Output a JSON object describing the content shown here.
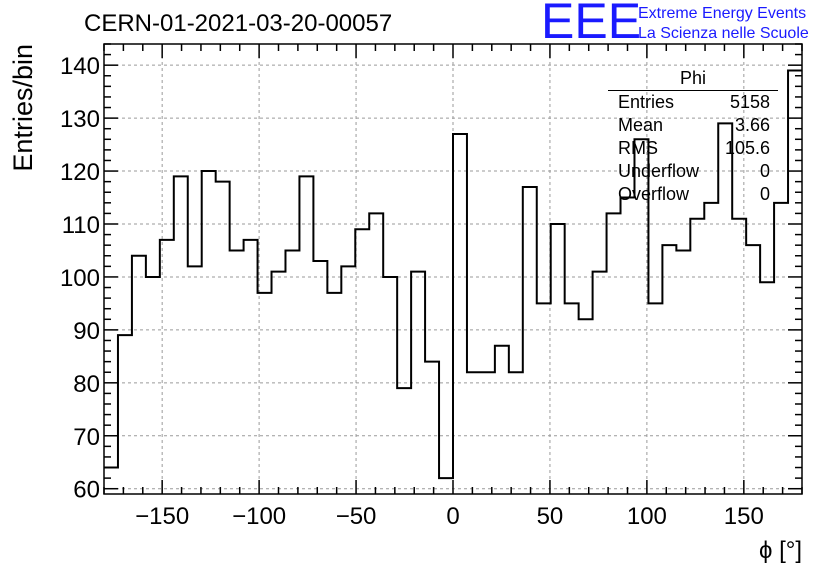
{
  "header": {
    "run_title": "CERN-01-2021-03-20-00057",
    "logo_text": "EEE",
    "logo_line1": "Extreme Energy Events",
    "logo_line2": "La Scienza nelle Scuole",
    "logo_color": "#1a1aff"
  },
  "stats": {
    "title": "Phi",
    "rows": [
      {
        "label": "Entries",
        "value": "5158"
      },
      {
        "label": "Mean",
        "value": "3.66"
      },
      {
        "label": "RMS",
        "value": "105.6"
      },
      {
        "label": "Underflow",
        "value": "0"
      },
      {
        "label": "Overflow",
        "value": "0"
      }
    ]
  },
  "chart_data": {
    "type": "histogram",
    "xlabel": "ϕ [°]",
    "ylabel": "Entries/bin",
    "xlim": [
      -180,
      180
    ],
    "ylim": [
      59,
      144
    ],
    "xticks": [
      -150,
      -100,
      -50,
      0,
      50,
      100,
      150
    ],
    "yticks": [
      60,
      70,
      80,
      90,
      100,
      110,
      120,
      130,
      140
    ],
    "grid": true,
    "bin_width": 7.2,
    "values": [
      64,
      89,
      104,
      100,
      107,
      119,
      102,
      120,
      118,
      105,
      107,
      97,
      101,
      105,
      119,
      103,
      97,
      102,
      109,
      112,
      100,
      79,
      101,
      84,
      62,
      127,
      82,
      82,
      87,
      82,
      117,
      95,
      110,
      95,
      92,
      101,
      112,
      115,
      126,
      95,
      106,
      105,
      111,
      114,
      129,
      111,
      106,
      99,
      114,
      139
    ]
  }
}
